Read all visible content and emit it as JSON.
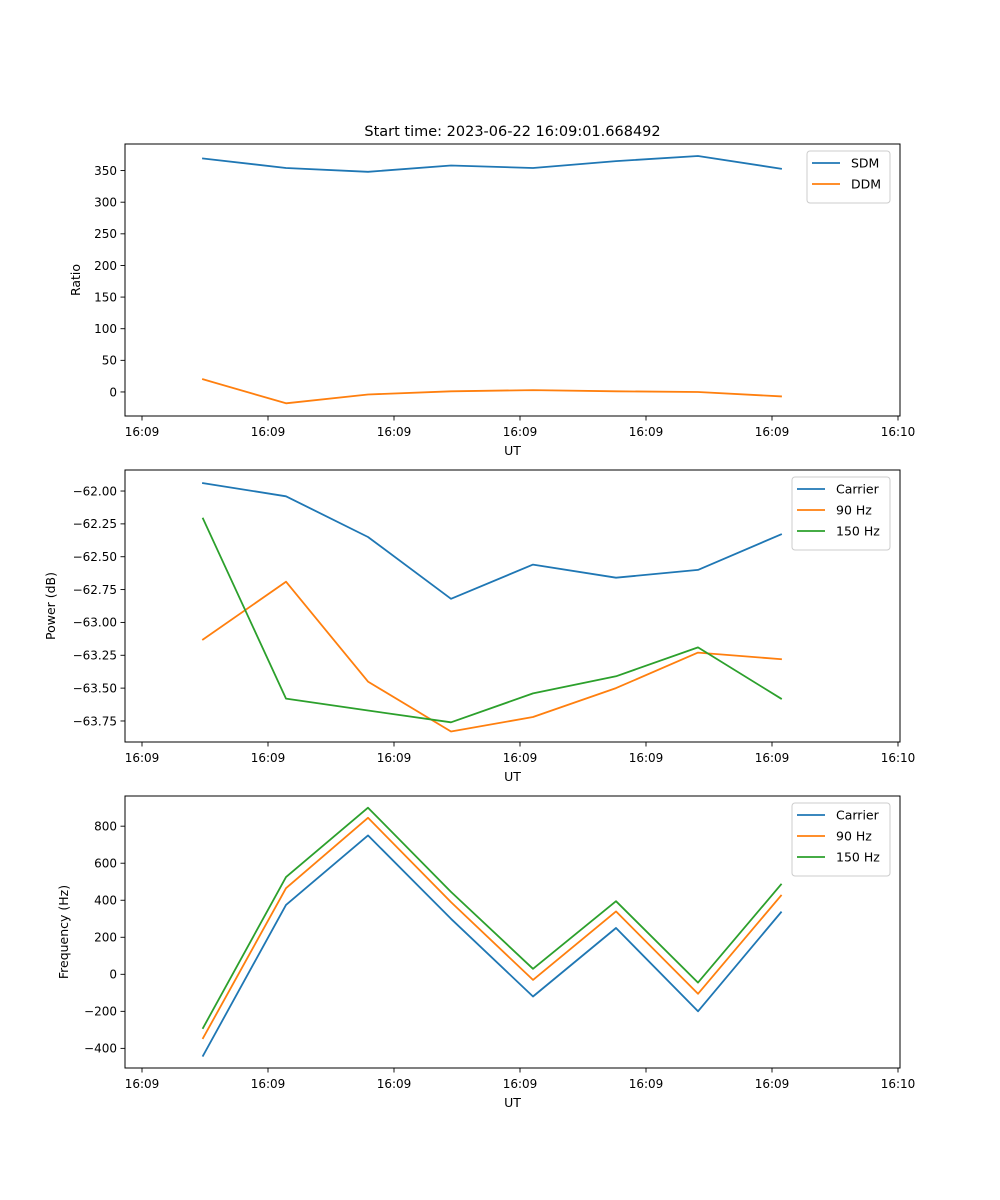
{
  "figure_title": "Start time: 2023-06-22 16:09:01.668492",
  "chart_data": [
    {
      "type": "line",
      "title": "Start time: 2023-06-22 16:09:01.668492",
      "xlabel": "UT",
      "ylabel": "Ratio",
      "x_tick_labels": [
        "16:09",
        "16:09",
        "16:09",
        "16:09",
        "16:09",
        "16:09",
        "16:10"
      ],
      "y_ticks": [
        0,
        50,
        100,
        150,
        200,
        250,
        300,
        350
      ],
      "y_tick_labels": [
        "0",
        "50",
        "100",
        "150",
        "200",
        "250",
        "300",
        "350"
      ],
      "ylim": [
        -38,
        392
      ],
      "grid": false,
      "legend": "top-right",
      "series": [
        {
          "name": "SDM",
          "color": "#1f77b4",
          "values": [
            369,
            354,
            348,
            358,
            354,
            365,
            373,
            353
          ]
        },
        {
          "name": "DDM",
          "color": "#ff7f0e",
          "values": [
            20,
            -18,
            -4,
            1,
            3,
            1,
            0,
            -7
          ]
        }
      ]
    },
    {
      "type": "line",
      "title": "",
      "xlabel": "UT",
      "ylabel": "Power (dB)",
      "x_tick_labels": [
        "16:09",
        "16:09",
        "16:09",
        "16:09",
        "16:09",
        "16:09",
        "16:10"
      ],
      "y_ticks": [
        -63.75,
        -63.5,
        -63.25,
        -63.0,
        -62.75,
        -62.5,
        -62.25,
        -62.0
      ],
      "y_tick_labels": [
        "−63.75",
        "−63.50",
        "−63.25",
        "−63.00",
        "−62.75",
        "−62.50",
        "−62.25",
        "−62.00"
      ],
      "ylim": [
        -63.91,
        -61.84
      ],
      "grid": false,
      "legend": "top-right",
      "series": [
        {
          "name": "Carrier",
          "color": "#1f77b4",
          "values": [
            -61.94,
            -62.04,
            -62.35,
            -62.82,
            -62.56,
            -62.66,
            -62.6,
            -62.33
          ]
        },
        {
          "name": "90 Hz",
          "color": "#ff7f0e",
          "values": [
            -63.13,
            -62.69,
            -63.45,
            -63.83,
            -63.72,
            -63.5,
            -63.23,
            -63.28
          ]
        },
        {
          "name": "150 Hz",
          "color": "#2ca02c",
          "values": [
            -62.21,
            -63.58,
            -63.67,
            -63.76,
            -63.54,
            -63.41,
            -63.19,
            -63.58
          ]
        }
      ]
    },
    {
      "type": "line",
      "title": "",
      "xlabel": "UT",
      "ylabel": "Frequency (Hz)",
      "x_tick_labels": [
        "16:09",
        "16:09",
        "16:09",
        "16:09",
        "16:09",
        "16:09",
        "16:10"
      ],
      "y_ticks": [
        -400,
        -200,
        0,
        200,
        400,
        600,
        800
      ],
      "y_tick_labels": [
        "−400",
        "−200",
        "0",
        "200",
        "400",
        "600",
        "800"
      ],
      "ylim": [
        -506,
        963
      ],
      "grid": false,
      "legend": "top-right",
      "series": [
        {
          "name": "Carrier",
          "color": "#1f77b4",
          "values": [
            -440,
            375,
            750,
            300,
            -120,
            250,
            -200,
            335
          ]
        },
        {
          "name": "90 Hz",
          "color": "#ff7f0e",
          "values": [
            -345,
            465,
            845,
            390,
            -30,
            340,
            -105,
            425
          ]
        },
        {
          "name": "150 Hz",
          "color": "#2ca02c",
          "values": [
            -290,
            525,
            900,
            445,
            30,
            395,
            -45,
            485
          ]
        }
      ]
    }
  ]
}
